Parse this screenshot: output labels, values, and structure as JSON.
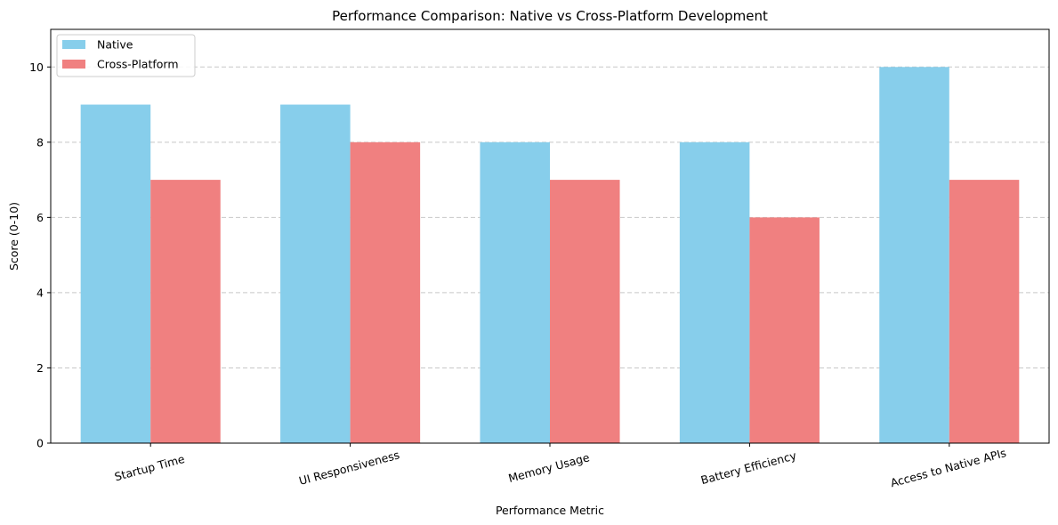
{
  "chart_data": {
    "type": "bar",
    "title": "Performance Comparison: Native vs Cross-Platform Development",
    "xlabel": "Performance Metric",
    "ylabel": "Score (0-10)",
    "categories": [
      "Startup Time",
      "UI Responsiveness",
      "Memory Usage",
      "Battery Efficiency",
      "Access to Native APIs"
    ],
    "series": [
      {
        "name": "Native",
        "values": [
          9,
          9,
          8,
          8,
          10
        ],
        "color": "#87ceeb"
      },
      {
        "name": "Cross-Platform",
        "values": [
          7,
          8,
          7,
          6,
          7
        ],
        "color": "#f08080"
      }
    ],
    "ylim": [
      0,
      11
    ],
    "yticks": [
      0,
      2,
      4,
      6,
      8,
      10
    ],
    "grid": "y, dashed",
    "legend": "top-left",
    "xtick_rotation_deg": 15
  }
}
